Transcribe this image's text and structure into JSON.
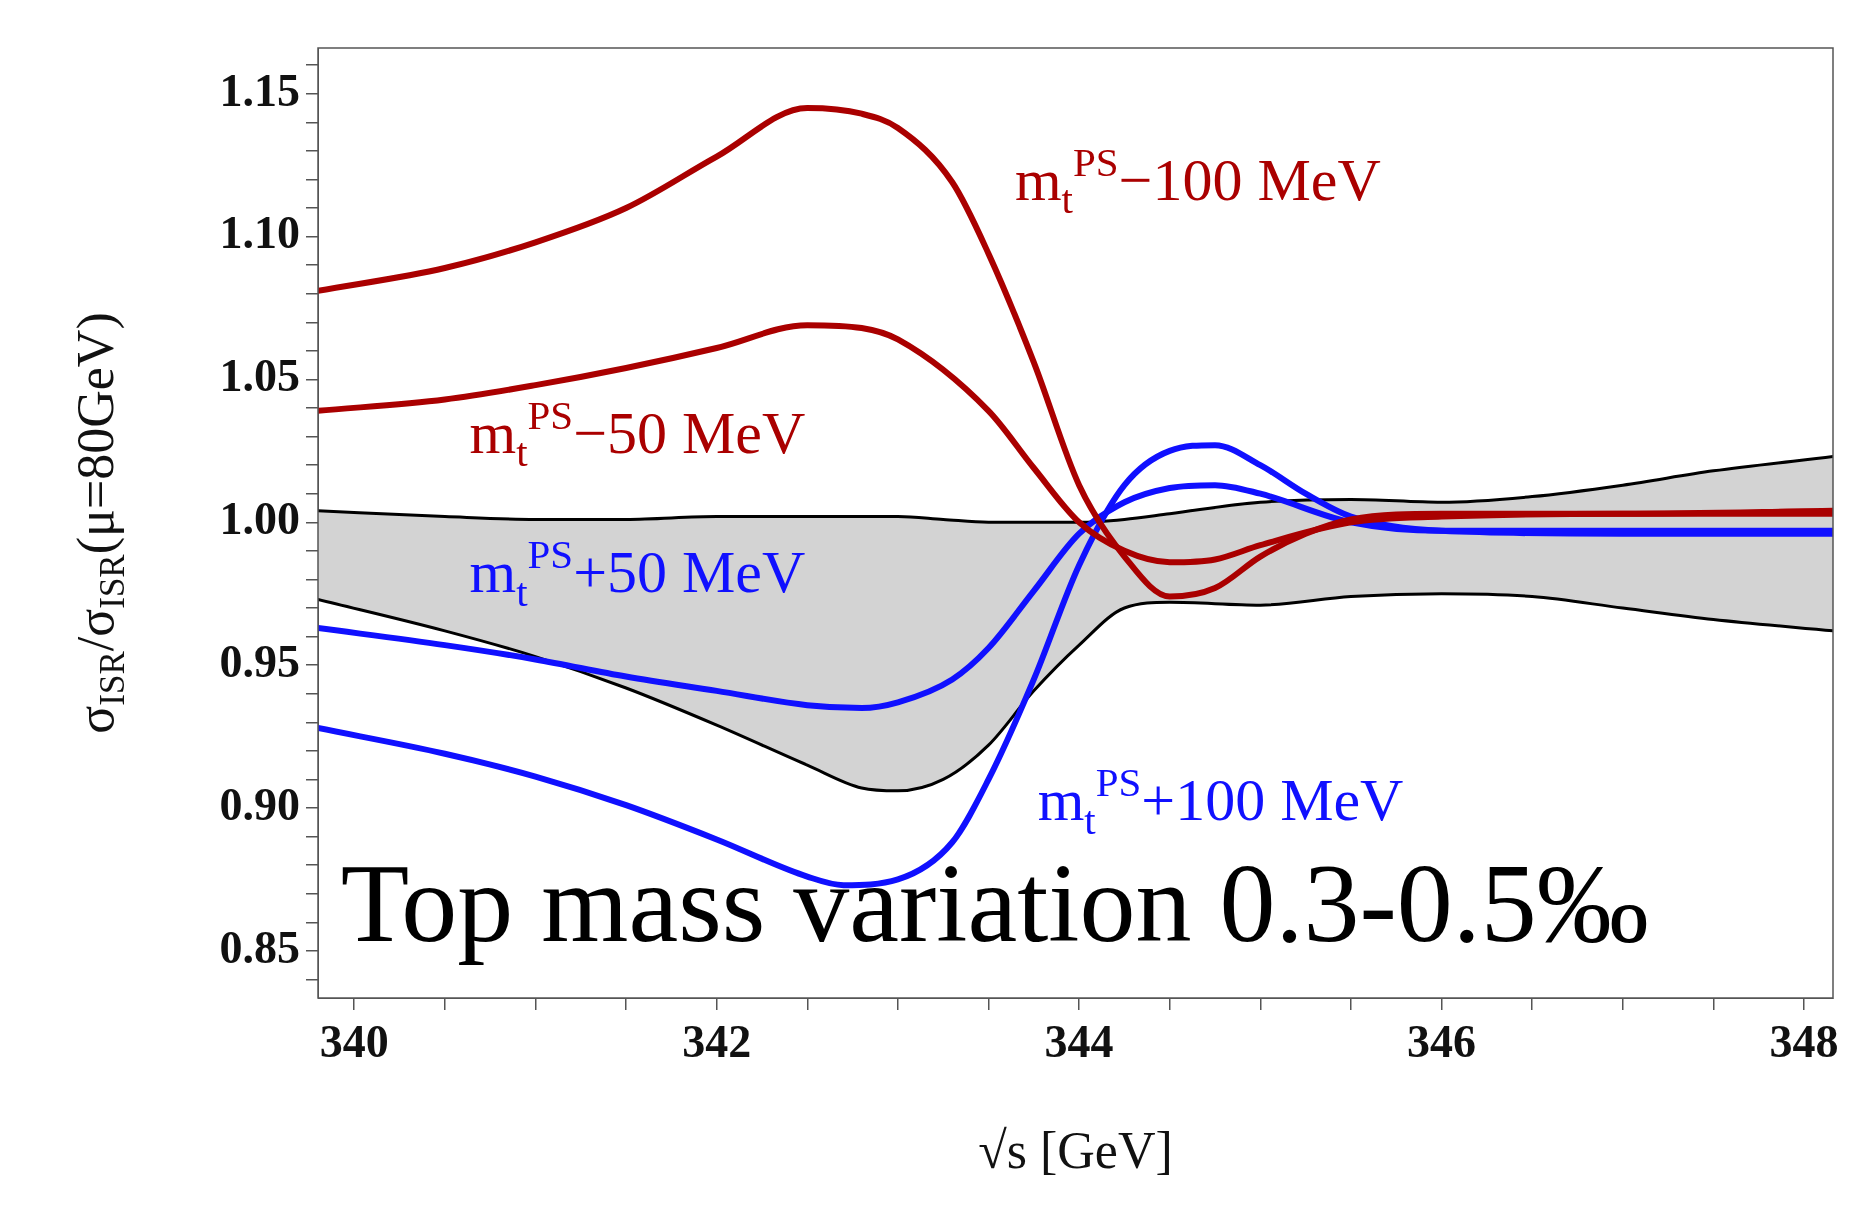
{
  "chart_data": {
    "type": "line",
    "xlabel": "√s [GeV]",
    "ylabel": "σ$_{ISR}$/σ$_{ISR}$(μ=80GeV)",
    "xlim": [
      339.8,
      348.16
    ],
    "xticks": [
      340,
      {
        "value": 340.5,
        "label": null
      },
      {
        "value": 341,
        "label": null
      },
      {
        "value": 341.5,
        "label": null
      },
      342,
      {
        "value": 342.5,
        "label": null
      },
      {
        "value": 343,
        "label": null
      },
      {
        "value": 343.5,
        "label": null
      },
      344,
      {
        "value": 344.5,
        "label": null
      },
      {
        "value": 345,
        "label": null
      },
      {
        "value": 345.5,
        "label": null
      },
      346,
      {
        "value": 346.5,
        "label": null
      },
      {
        "value": 347,
        "label": null
      },
      {
        "value": 347.5,
        "label": null
      },
      348
    ],
    "ylim": [
      0.8335,
      1.166
    ],
    "yticks": [
      {
        "value": 0.84,
        "label": null
      },
      0.85,
      {
        "value": 0.86,
        "label": null
      },
      {
        "value": 0.87,
        "label": null
      },
      {
        "value": 0.88,
        "label": null
      },
      {
        "value": 0.89,
        "label": null
      },
      {
        "value": 0.9,
        "label": "0.90"
      },
      {
        "value": 0.91,
        "label": null
      },
      {
        "value": 0.92,
        "label": null
      },
      {
        "value": 0.93,
        "label": null
      },
      {
        "value": 0.94,
        "label": null
      },
      0.95,
      {
        "value": 0.96,
        "label": null
      },
      {
        "value": 0.97,
        "label": null
      },
      {
        "value": 0.98,
        "label": null
      },
      {
        "value": 0.99,
        "label": null
      },
      {
        "value": 1,
        "label": "1.00"
      },
      {
        "value": 1.01,
        "label": null
      },
      {
        "value": 1.02,
        "label": null
      },
      {
        "value": 1.03,
        "label": null
      },
      {
        "value": 1.04,
        "label": null
      },
      1.05,
      {
        "value": 1.06,
        "label": null
      },
      {
        "value": 1.07,
        "label": null
      },
      {
        "value": 1.08,
        "label": null
      },
      {
        "value": 1.09,
        "label": null
      },
      {
        "value": 1.1,
        "label": "1.10"
      },
      {
        "value": 1.11,
        "label": null
      },
      {
        "value": 1.12,
        "label": null
      },
      {
        "value": 1.13,
        "label": null
      },
      {
        "value": 1.14,
        "label": null
      },
      1.15,
      {
        "value": 1.16,
        "label": null
      }
    ],
    "grid": false,
    "legend": false,
    "marker": "none",
    "line_style": "solid",
    "annotations": [
      "Top mass variation 0.3-0.5‰"
    ],
    "series": [
      {
        "name": "m$_{t}$$^{PS}$−100 MeV",
        "color": "#aa0000",
        "x": [
          339.8,
          340.5,
          341,
          341.5,
          342,
          342.5,
          342.8,
          343,
          343.3,
          343.5,
          343.75,
          344,
          344.25,
          344.5,
          344.75,
          345,
          345.25,
          345.5,
          346,
          347,
          348.16
        ],
        "values": [
          1.081,
          1.089,
          1.098,
          1.11,
          1.128,
          1.145,
          1.143,
          1.138,
          1.119,
          1.094,
          1.056,
          1.013,
          0.988,
          0.974,
          0.977,
          0.988,
          0.996,
          1.001,
          1.003,
          1.003,
          1.004
        ]
      },
      {
        "name": "m$_{t}$$^{PS}$−50 MeV",
        "color": "#aa0000",
        "x": [
          339.8,
          340.5,
          341,
          341.5,
          342,
          342.5,
          342.8,
          343,
          343.5,
          343.75,
          344,
          344.25,
          344.5,
          344.75,
          345,
          345.5,
          346,
          347,
          348.16
        ],
        "values": [
          1.039,
          1.043,
          1.048,
          1.054,
          1.061,
          1.069,
          1.068,
          1.064,
          1.039,
          1.019,
          1.0,
          0.99,
          0.986,
          0.987,
          0.992,
          1.0,
          1.002,
          1.003,
          1.003
        ]
      },
      {
        "name": "m$_{t}$$^{PS}$+50 MeV",
        "color": "#1010ff",
        "x": [
          339.8,
          340.5,
          341,
          341.5,
          342,
          342.5,
          342.8,
          343,
          343.3,
          343.5,
          343.75,
          344,
          344.25,
          344.5,
          344.75,
          345,
          345.5,
          346,
          347,
          348.16
        ],
        "values": [
          0.963,
          0.957,
          0.952,
          0.946,
          0.941,
          0.936,
          0.935,
          0.937,
          0.945,
          0.956,
          0.976,
          0.996,
          1.007,
          1.012,
          1.013,
          1.01,
          1.0,
          0.997,
          0.997,
          0.997
        ]
      },
      {
        "name": "m$_{t}$$^{PS}$+100 MeV",
        "color": "#1010ff",
        "x": [
          339.8,
          340.5,
          341,
          341.5,
          342,
          342.5,
          342.7,
          343,
          343.3,
          343.5,
          343.75,
          344,
          344.25,
          344.5,
          344.75,
          345,
          345.25,
          345.5,
          346,
          347,
          348.16
        ],
        "values": [
          0.928,
          0.919,
          0.911,
          0.901,
          0.889,
          0.876,
          0.873,
          0.875,
          0.888,
          0.91,
          0.945,
          0.985,
          1.013,
          1.025,
          1.027,
          1.02,
          1.01,
          1.002,
          0.997,
          0.996,
          0.996
        ]
      },
      {
        "color": "#000000",
        "x": [
          339.8,
          340.5,
          341,
          341.5,
          342,
          342.5,
          342.8,
          343,
          343.25,
          343.5,
          343.75,
          344,
          344.25,
          344.5,
          345,
          345.5,
          346,
          346.5,
          347,
          347.5,
          348.16
        ],
        "values": [
          1.004,
          1.002,
          1.001,
          1.001,
          1.002,
          1.002,
          1.002,
          1.002,
          1.001,
          1.0,
          1.0,
          1.0,
          1.001,
          1.003,
          1.007,
          1.008,
          1.007,
          1.009,
          1.013,
          1.018,
          1.023
        ]
      },
      {
        "color": "#000000",
        "x": [
          339.8,
          340.5,
          341,
          341.5,
          342,
          342.5,
          342.8,
          343,
          343.25,
          343.5,
          343.75,
          344,
          344.25,
          344.5,
          345,
          345.5,
          346,
          346.5,
          347,
          347.5,
          348.16
        ],
        "values": [
          0.973,
          0.962,
          0.953,
          0.942,
          0.929,
          0.915,
          0.907,
          0.906,
          0.91,
          0.922,
          0.941,
          0.957,
          0.97,
          0.972,
          0.971,
          0.974,
          0.975,
          0.974,
          0.97,
          0.966,
          0.962
        ]
      },
      {
        "color": "#d3d3d3",
        "x": [
          339.8,
          340.5,
          341,
          341.5,
          342,
          342.5,
          342.8,
          343,
          343.25,
          343.5,
          343.75,
          344,
          344.25,
          344.5,
          345,
          345.5,
          346,
          346.5,
          347,
          347.5,
          348.16
        ],
        "values": [
          null,
          null,
          null,
          null,
          null,
          null,
          null,
          null,
          null,
          null,
          null,
          null,
          null,
          null,
          null,
          null,
          null,
          null,
          null,
          null,
          null
        ],
        "upper": [
          1.004,
          1.002,
          1.001,
          1.001,
          1.002,
          1.002,
          1.002,
          1.002,
          1.001,
          1.0,
          1.0,
          1.0,
          1.001,
          1.003,
          1.007,
          1.008,
          1.007,
          1.009,
          1.013,
          1.018,
          1.023
        ],
        "lower": [
          0.973,
          0.962,
          0.953,
          0.942,
          0.929,
          0.915,
          0.907,
          0.906,
          0.91,
          0.922,
          0.941,
          0.957,
          0.97,
          0.972,
          0.971,
          0.974,
          0.975,
          0.974,
          0.97,
          0.966,
          0.962
        ]
      }
    ]
  }
}
